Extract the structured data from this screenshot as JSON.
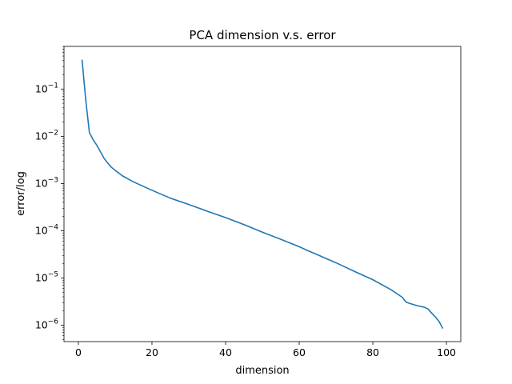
{
  "chart_data": {
    "type": "line",
    "title": "PCA dimension v.s. error",
    "xlabel": "dimension",
    "ylabel": "error/log",
    "xscale": "linear",
    "yscale": "log",
    "xlim": [
      -3.9,
      103.9
    ],
    "ylim": [
      4.5e-07,
      0.8
    ],
    "grid": false,
    "x_ticks": [
      {
        "value": 0,
        "label": "0"
      },
      {
        "value": 20,
        "label": "20"
      },
      {
        "value": 40,
        "label": "40"
      },
      {
        "value": 60,
        "label": "60"
      },
      {
        "value": 80,
        "label": "80"
      },
      {
        "value": 100,
        "label": "100"
      }
    ],
    "y_ticks": [
      {
        "value": 1e-06,
        "base": "10",
        "exp": "−6"
      },
      {
        "value": 1e-05,
        "base": "10",
        "exp": "−5"
      },
      {
        "value": 0.0001,
        "base": "10",
        "exp": "−4"
      },
      {
        "value": 0.001,
        "base": "10",
        "exp": "−3"
      },
      {
        "value": 0.01,
        "base": "10",
        "exp": "−2"
      },
      {
        "value": 0.1,
        "base": "10",
        "exp": "−1"
      }
    ],
    "series": [
      {
        "color": "#1f77b4",
        "x": [
          1,
          2,
          3,
          4,
          5,
          6,
          7,
          8,
          9,
          10,
          12,
          15,
          20,
          25,
          30,
          35,
          40,
          45,
          50,
          55,
          60,
          62,
          65,
          70,
          75,
          80,
          85,
          88,
          89,
          90,
          92,
          94,
          95,
          96,
          97,
          98,
          99
        ],
        "y": [
          0.42,
          0.06,
          0.012,
          0.0085,
          0.0065,
          0.0047,
          0.0034,
          0.0027,
          0.0022,
          0.0019,
          0.00145,
          0.00108,
          0.00072,
          0.00049,
          0.00036,
          0.00026,
          0.00019,
          0.000135,
          9.3e-05,
          6.6e-05,
          4.6e-05,
          3.9e-05,
          3.1e-05,
          2.1e-05,
          1.38e-05,
          9.2e-06,
          5.6e-06,
          3.9e-06,
          3.1e-06,
          2.9e-06,
          2.6e-06,
          2.4e-06,
          2.2e-06,
          1.8e-06,
          1.5e-06,
          1.2e-06,
          8.5e-07
        ]
      }
    ]
  }
}
